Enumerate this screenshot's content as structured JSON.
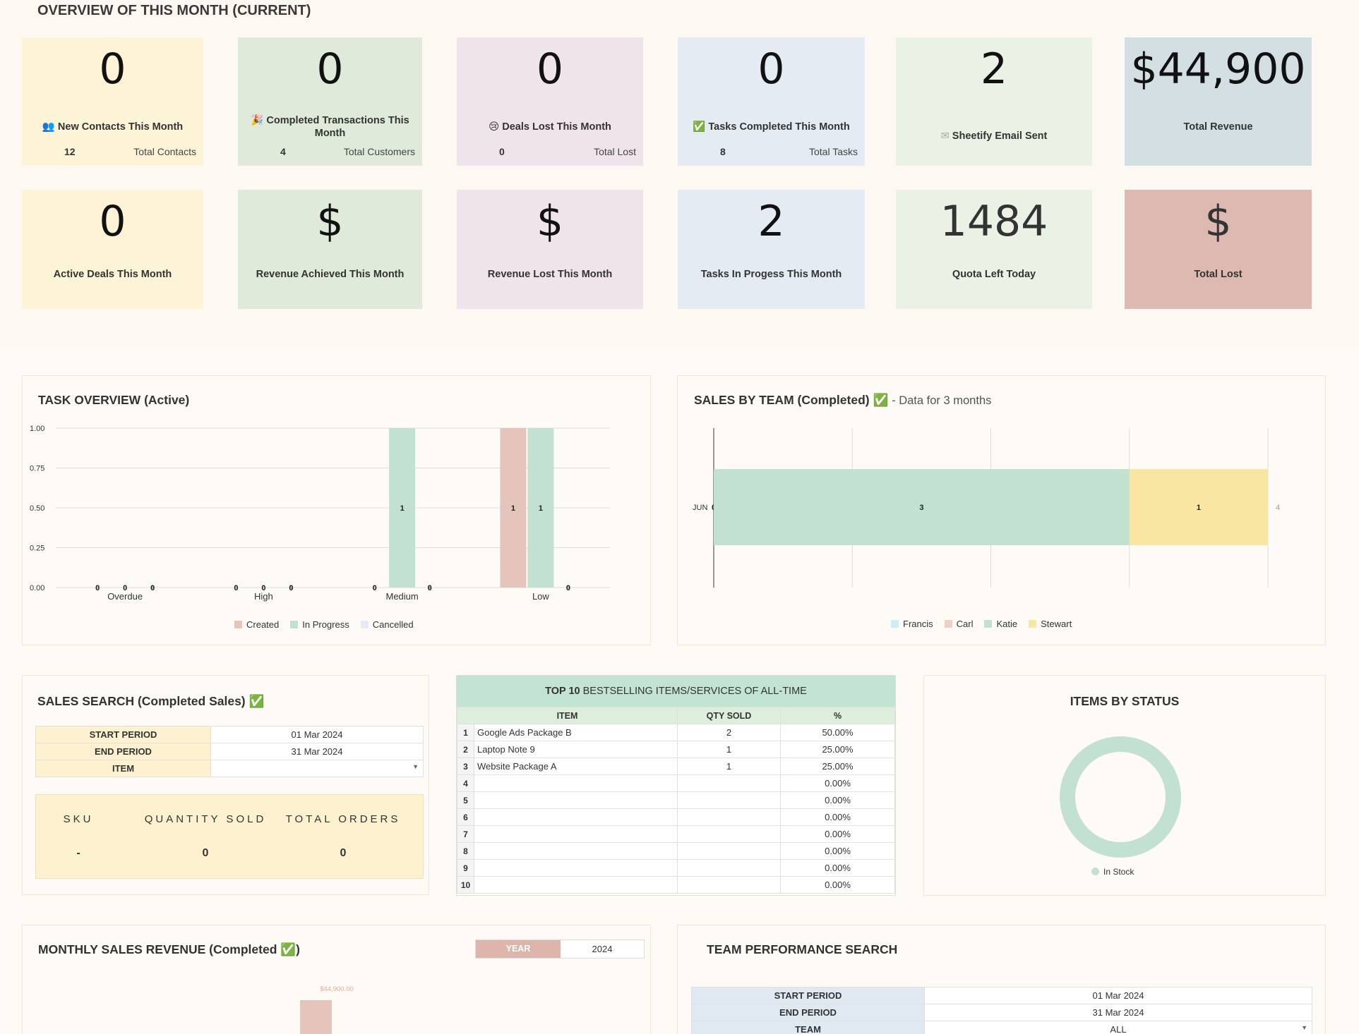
{
  "overview": {
    "title": "OVERVIEW OF THIS MONTH (CURRENT)",
    "row1": [
      {
        "value": "0",
        "label": "New Contacts This Month",
        "sub_value": "12",
        "sub_label": "Total Contacts",
        "color": "#fdf3d6"
      },
      {
        "value": "0",
        "label": "Completed Transactions This Month",
        "sub_value": "4",
        "sub_label": "Total Customers",
        "color": "#dfeadb"
      },
      {
        "value": "0",
        "label": "Deals Lost This Month",
        "sub_value": "0",
        "sub_label": "Total Lost",
        "color": "#efe4ea"
      },
      {
        "value": "0",
        "label": "Tasks Completed This Month",
        "sub_value": "8",
        "sub_label": "Total Tasks",
        "color": "#e4ebf3"
      },
      {
        "value": "2",
        "label": "Sheetify Email Sent",
        "color": "#e9f2e5"
      },
      {
        "value": "$44,900",
        "label": "Total Revenue",
        "color": "#d3dfe3"
      }
    ],
    "row2": [
      {
        "value": "0",
        "label": "Active Deals This Month",
        "color": "#fdf3d6"
      },
      {
        "value": "$",
        "label": "Revenue Achieved This Month",
        "color": "#dfeadb"
      },
      {
        "value": "$",
        "label": "Revenue Lost This Month",
        "color": "#efe4ea"
      },
      {
        "value": "2",
        "label": "Tasks In Progess This Month",
        "color": "#e4ebf3"
      },
      {
        "value": "1484",
        "label": "Quota Left Today",
        "color": "#e9f2e5"
      },
      {
        "value": "$",
        "label": "Total Lost",
        "color": "#ddb9b1"
      }
    ]
  },
  "task_overview": {
    "title": "TASK OVERVIEW (Active)",
    "chart_data": {
      "type": "bar",
      "categories": [
        "Overdue",
        "High",
        "Medium",
        "Low"
      ],
      "series": [
        {
          "name": "Created",
          "values": [
            0,
            0,
            0,
            1
          ],
          "color": "#e4c4bb"
        },
        {
          "name": "In Progress",
          "values": [
            0,
            0,
            1,
            1
          ],
          "color": "#c2e1d0"
        },
        {
          "name": "Cancelled",
          "values": [
            0,
            0,
            0,
            0
          ],
          "color": "#e4ebf5"
        }
      ],
      "ylim": [
        0,
        1
      ],
      "yticks": [
        "1.00",
        "0.75",
        "0.50",
        "0.25",
        "0.00"
      ],
      "legend": "bottom"
    }
  },
  "sales_by_team": {
    "title": "SALES BY TEAM (Completed)",
    "subtitle": "- Data for 3 months",
    "chart_data": {
      "type": "bar",
      "orientation": "horizontal",
      "stacked": true,
      "categories": [
        "JUN"
      ],
      "series": [
        {
          "name": "Francis",
          "values": [
            0
          ],
          "color": "#cdeef4"
        },
        {
          "name": "Carl",
          "values": [
            0
          ],
          "color": "#f0cfc7"
        },
        {
          "name": "Katie",
          "values": [
            3
          ],
          "color": "#c2e1d0"
        },
        {
          "name": "Stewart",
          "values": [
            1
          ],
          "color": "#f9e6a2"
        }
      ],
      "xlim": [
        0,
        4
      ],
      "total_label": "4",
      "legend": "bottom"
    }
  },
  "sales_search": {
    "title": "SALES SEARCH (Completed Sales)",
    "start_label": "START PERIOD",
    "start_value": "01 Mar 2024",
    "end_label": "END PERIOD",
    "end_value": "31 Mar 2024",
    "item_label": "ITEM",
    "item_value": "",
    "col_sku": "SKU",
    "col_qty": "QUANTITY SOLD",
    "col_orders": "TOTAL ORDERS",
    "sku": "-",
    "qty": "0",
    "orders": "0"
  },
  "top10": {
    "title_bold": "TOP 10",
    "title_rest": "BESTSELLING ITEMS/SERVICES OF ALL-TIME",
    "col_item": "ITEM",
    "col_qty": "QTY SOLD",
    "col_pct": "%",
    "rows": [
      {
        "n": "1",
        "item": "Google Ads Package B",
        "qty": "2",
        "pct": "50.00%"
      },
      {
        "n": "2",
        "item": "Laptop Note 9",
        "qty": "1",
        "pct": "25.00%"
      },
      {
        "n": "3",
        "item": "Website Package A",
        "qty": "1",
        "pct": "25.00%"
      },
      {
        "n": "4",
        "item": "",
        "qty": "",
        "pct": "0.00%"
      },
      {
        "n": "5",
        "item": "",
        "qty": "",
        "pct": "0.00%"
      },
      {
        "n": "6",
        "item": "",
        "qty": "",
        "pct": "0.00%"
      },
      {
        "n": "7",
        "item": "",
        "qty": "",
        "pct": "0.00%"
      },
      {
        "n": "8",
        "item": "",
        "qty": "",
        "pct": "0.00%"
      },
      {
        "n": "9",
        "item": "",
        "qty": "",
        "pct": "0.00%"
      },
      {
        "n": "10",
        "item": "",
        "qty": "",
        "pct": "0.00%"
      }
    ]
  },
  "items_by_status": {
    "title": "ITEMS BY STATUS",
    "chart_data": {
      "type": "pie",
      "slices": [
        {
          "name": "In Stock",
          "value": 1,
          "color": "#c2e1d0"
        }
      ],
      "legend": "bottom"
    }
  },
  "monthly_revenue": {
    "title": "MONTHLY SALES REVENUE (Completed",
    "title_end": ")",
    "year_label": "YEAR",
    "year_value": "2024",
    "bar_label": "$44,900.00"
  },
  "team_performance": {
    "title": "TEAM PERFORMANCE SEARCH",
    "start_label": "START PERIOD",
    "start_value": "01 Mar 2024",
    "end_label": "END PERIOD",
    "end_value": "31 Mar 2024",
    "team_label": "TEAM",
    "team_value": "ALL"
  }
}
